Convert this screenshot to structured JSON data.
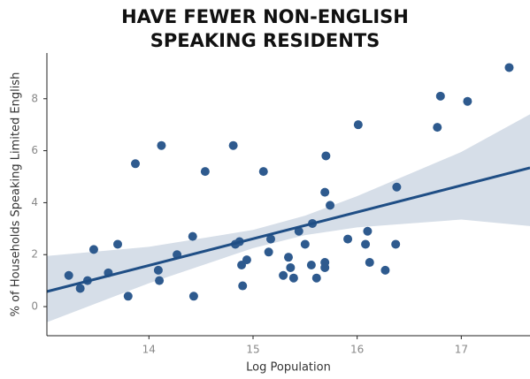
{
  "chart_data": {
    "type": "scatter",
    "title": "HAVE FEWER NON-ENGLISH SPEAKING RESIDENTS",
    "xlabel": "Log Population",
    "ylabel": "% of Households Speaking Limited English",
    "color": "#2e5a8e",
    "x": [
      13.23,
      13.34,
      13.41,
      13.47,
      13.61,
      13.7,
      13.8,
      13.87,
      14.09,
      14.1,
      14.12,
      14.27,
      14.42,
      14.43,
      14.54,
      14.81,
      14.83,
      14.87,
      14.89,
      14.94,
      14.9,
      15.1,
      15.15,
      15.17,
      15.29,
      15.34,
      15.36,
      15.39,
      15.44,
      15.5,
      15.56,
      15.57,
      15.61,
      15.69,
      15.69,
      15.69,
      15.7,
      15.74,
      15.91,
      16.01,
      16.08,
      16.1,
      16.12,
      16.27,
      16.38,
      16.37,
      16.77,
      16.8,
      17.06,
      17.46
    ],
    "values": [
      1.2,
      0.7,
      1.0,
      2.2,
      1.3,
      2.4,
      0.4,
      5.5,
      1.4,
      1.0,
      6.2,
      2.0,
      2.7,
      0.4,
      5.2,
      6.2,
      2.4,
      2.5,
      1.6,
      1.8,
      0.8,
      5.2,
      2.1,
      2.6,
      1.2,
      1.9,
      1.5,
      1.1,
      2.9,
      2.4,
      1.6,
      3.2,
      1.1,
      4.4,
      1.5,
      1.7,
      5.8,
      3.9,
      2.6,
      7.0,
      2.4,
      2.9,
      1.7,
      1.4,
      4.6,
      2.4,
      6.9,
      8.1,
      7.9,
      9.2
    ],
    "regression": {
      "color": "#1f4e85",
      "x": [
        13.02,
        17.66
      ],
      "y": [
        0.58,
        5.34
      ]
    },
    "band": {
      "color": "#d6dee8",
      "x": [
        13.02,
        14,
        15,
        15.5,
        16,
        17,
        17.66
      ],
      "lower": [
        -0.6,
        0.9,
        2.25,
        2.75,
        3.05,
        3.35,
        3.1
      ],
      "upper": [
        1.95,
        2.3,
        2.95,
        3.5,
        4.25,
        5.95,
        7.4
      ]
    },
    "xlim": [
      13.02,
      17.66
    ],
    "ylim": [
      -1.12,
      9.76
    ],
    "xticks": [
      14,
      15,
      16,
      17
    ],
    "yticks": [
      0,
      2,
      4,
      6,
      8
    ]
  }
}
